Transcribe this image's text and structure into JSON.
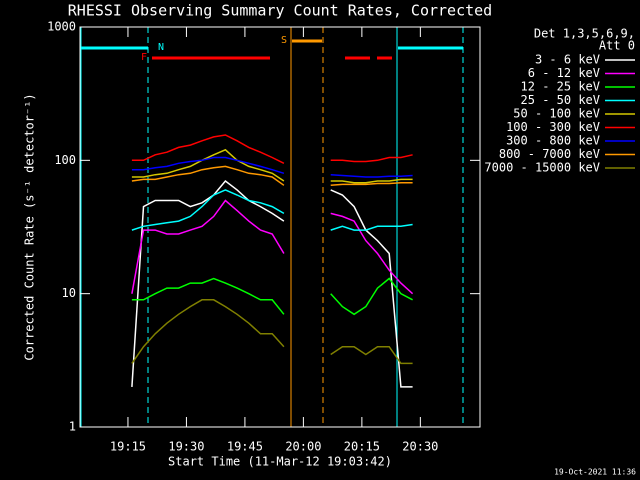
{
  "chart_data": {
    "type": "line",
    "title": "RHESSI Observing Summary Count Rates, Corrected",
    "x_label": "Start Time (11-Mar-12 19:03:42)",
    "y_label": "Corrected Count Rate (s⁻¹ detector⁻¹)",
    "legend_title": [
      "Det 1,3,5,6,9,",
      "Att 0"
    ],
    "footer": "19-Oct-2021 11:36",
    "annotations": [
      "N",
      "F",
      "S"
    ],
    "log_y": true,
    "xlim": [
      2.7,
      105.3
    ],
    "xticks": [
      {
        "value": 15,
        "label": "19:15"
      },
      {
        "value": 30,
        "label": "19:30"
      },
      {
        "value": 45,
        "label": "19:45"
      },
      {
        "value": 60,
        "label": "20:00"
      },
      {
        "value": 75,
        "label": "20:15"
      },
      {
        "value": 90,
        "label": "20:30"
      }
    ],
    "ylim": [
      1,
      1000
    ],
    "yticks": [
      1,
      10,
      100,
      1000
    ],
    "x": [
      16,
      19,
      22,
      25,
      28,
      31,
      34,
      37,
      40,
      43,
      46,
      49,
      52,
      55,
      61,
      67,
      70,
      73,
      76,
      79,
      82,
      85,
      88
    ],
    "series": [
      {
        "name": "3 - 6 keV",
        "color": "#ffffff",
        "values": [
          2,
          45,
          50,
          50,
          50,
          45,
          48,
          55,
          70,
          60,
          50,
          45,
          40,
          35,
          null,
          60,
          55,
          45,
          30,
          25,
          20,
          2,
          2
        ]
      },
      {
        "name": "6 - 12 keV",
        "color": "#ff00ff",
        "values": [
          10,
          30,
          30,
          28,
          28,
          30,
          32,
          38,
          50,
          42,
          35,
          30,
          28,
          20,
          null,
          40,
          38,
          35,
          25,
          20,
          15,
          12,
          10
        ]
      },
      {
        "name": "12 - 25 keV",
        "color": "#00ff00",
        "values": [
          9,
          9,
          10,
          11,
          11,
          12,
          12,
          13,
          12,
          11,
          10,
          9,
          9,
          7,
          null,
          10,
          8,
          7,
          8,
          11,
          13,
          10,
          9
        ]
      },
      {
        "name": "25 - 50 keV",
        "color": "#00ffff",
        "values": [
          30,
          32,
          33,
          34,
          35,
          38,
          45,
          55,
          60,
          55,
          50,
          48,
          45,
          40,
          null,
          30,
          32,
          30,
          30,
          32,
          32,
          32,
          33
        ]
      },
      {
        "name": "50 - 100 keV",
        "color": "#d4c800",
        "values": [
          75,
          75,
          78,
          80,
          85,
          90,
          100,
          110,
          120,
          100,
          90,
          85,
          80,
          70,
          null,
          70,
          70,
          68,
          68,
          70,
          70,
          72,
          72
        ]
      },
      {
        "name": "100 - 300 keV",
        "color": "#ff0000",
        "values": [
          100,
          100,
          110,
          115,
          125,
          130,
          140,
          150,
          155,
          140,
          125,
          115,
          105,
          95,
          null,
          100,
          100,
          98,
          98,
          100,
          105,
          105,
          110
        ]
      },
      {
        "name": "300 - 800 keV",
        "color": "#0000ff",
        "values": [
          85,
          85,
          88,
          90,
          95,
          98,
          100,
          105,
          105,
          100,
          95,
          90,
          85,
          80,
          null,
          78,
          77,
          76,
          75,
          75,
          76,
          76,
          77
        ]
      },
      {
        "name": "800 - 7000 keV",
        "color": "#ff9900",
        "values": [
          70,
          72,
          72,
          75,
          78,
          80,
          85,
          88,
          90,
          85,
          80,
          78,
          75,
          65,
          null,
          65,
          66,
          66,
          66,
          67,
          67,
          68,
          68
        ]
      },
      {
        "name": "7000 - 15000 keV",
        "color": "#808000",
        "values": [
          3,
          4,
          5,
          6,
          7,
          8,
          9,
          9,
          8,
          7,
          6,
          5,
          5,
          4,
          null,
          3.5,
          4,
          4,
          3.5,
          4,
          4,
          3,
          3
        ]
      }
    ]
  }
}
